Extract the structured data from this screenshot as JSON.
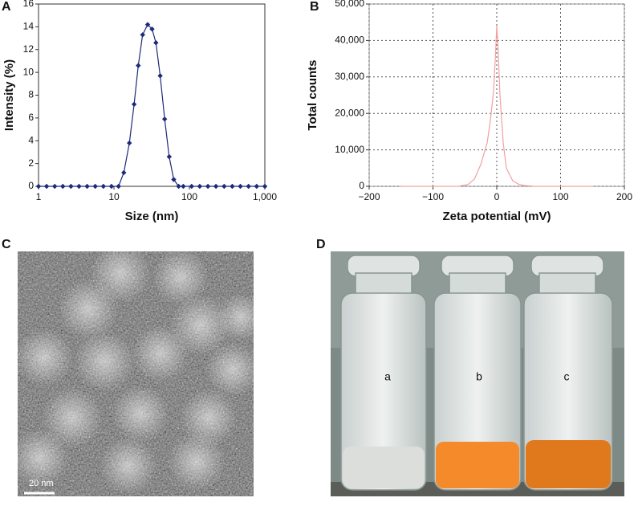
{
  "chart_data": [
    {
      "type": "line",
      "panel": "A",
      "x_label": "Size (nm)",
      "y_label": "Intensity (%)",
      "xscale": "log",
      "marker": "diamond",
      "color": "#1f2a7a",
      "grid": false,
      "x": [
        1,
        1.28,
        1.64,
        2.1,
        2.69,
        3.44,
        4.41,
        5.65,
        7.24,
        9.27,
        11.5,
        13.5,
        16,
        18.5,
        21,
        24,
        28,
        32,
        36,
        41,
        47,
        54,
        62,
        72,
        83,
        107,
        137,
        176,
        225,
        289,
        370,
        474,
        608,
        779,
        1000
      ],
      "values": [
        0,
        0,
        0,
        0,
        0,
        0,
        0,
        0,
        0,
        0,
        0,
        1.2,
        3.8,
        7.2,
        10.6,
        13.3,
        14.2,
        13.8,
        12.6,
        9.7,
        5.9,
        2.6,
        0.6,
        0,
        0,
        0,
        0,
        0,
        0,
        0,
        0,
        0,
        0,
        0,
        0
      ],
      "xlim": [
        1,
        1000
      ],
      "xticks": [
        1,
        10,
        100,
        {
          "value": 1000,
          "label": "1,000"
        }
      ],
      "ylim": [
        0,
        16
      ],
      "yticks": [
        0,
        2,
        4,
        6,
        8,
        10,
        12,
        14,
        16
      ]
    },
    {
      "type": "line",
      "panel": "B",
      "x_label": "Zeta potential (mV)",
      "y_label": "Total counts",
      "color": "#f4a0a0",
      "grid": true,
      "x": [
        -150,
        -100,
        -60,
        -45,
        -35,
        -25,
        -15,
        -10,
        -5,
        -2,
        0,
        2,
        5,
        10,
        15,
        25,
        35,
        45,
        60,
        100,
        150
      ],
      "values": [
        0,
        0,
        0,
        500,
        2000,
        6000,
        12000,
        18000,
        26000,
        36000,
        44000,
        38000,
        25000,
        12000,
        5000,
        1500,
        500,
        200,
        0,
        0,
        0
      ],
      "xlim": [
        -200,
        200
      ],
      "xticks": [
        {
          "value": -200,
          "label": "−200"
        },
        {
          "value": -100,
          "label": "−100"
        },
        0,
        100,
        200
      ],
      "ylim": [
        0,
        50000
      ],
      "yticks": [
        0,
        {
          "value": 10000,
          "label": "10,000"
        },
        {
          "value": 20000,
          "label": "20,000"
        },
        {
          "value": 30000,
          "label": "30,000"
        },
        {
          "value": 40000,
          "label": "40,000"
        },
        {
          "value": 50000,
          "label": "50,000"
        }
      ]
    }
  ],
  "images": [
    {
      "panel": "C",
      "scale_bar": "20 nm"
    },
    {
      "panel": "D",
      "vial_labels": [
        "a",
        "b",
        "c"
      ]
    }
  ]
}
